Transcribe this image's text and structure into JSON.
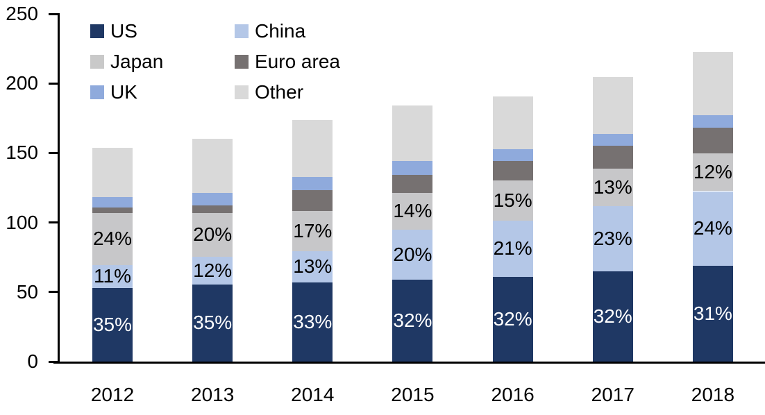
{
  "chart_data": {
    "type": "bar",
    "stacked": true,
    "title": "",
    "categories": [
      "2012",
      "2013",
      "2014",
      "2015",
      "2016",
      "2017",
      "2018"
    ],
    "series": [
      {
        "name": "US",
        "color": "#1F3864",
        "values": [
          53,
          55.5,
          57,
          59,
          61,
          65,
          69
        ],
        "labels": [
          "35%",
          "35%",
          "33%",
          "32%",
          "32%",
          "32%",
          "31%"
        ],
        "label_color": "#FFFFFF"
      },
      {
        "name": "China",
        "color": "#B4C7E7",
        "values": [
          16.5,
          20,
          22.5,
          36,
          40.5,
          47,
          53.5
        ],
        "labels": [
          "11%",
          "12%",
          "13%",
          "20%",
          "21%",
          "23%",
          "24%"
        ],
        "label_color": "#000000"
      },
      {
        "name": "Japan",
        "color": "#C7C7C9",
        "values": [
          37.5,
          31.5,
          29,
          26.5,
          28.5,
          26.5,
          27
        ],
        "labels": [
          "24%",
          "20%",
          "17%",
          "14%",
          "15%",
          "13%",
          "12%"
        ],
        "label_color": "#000000"
      },
      {
        "name": "Euro area",
        "color": "#767171",
        "values": [
          4,
          5.5,
          15,
          12.5,
          14,
          16.5,
          18.5
        ],
        "labels": null,
        "label_color": null
      },
      {
        "name": "UK",
        "color": "#8FAADC",
        "values": [
          7.5,
          9,
          9,
          10,
          8.5,
          8.5,
          9
        ],
        "labels": null,
        "label_color": null
      },
      {
        "name": "Other",
        "color": "#D9D9D9",
        "values": [
          35,
          38.5,
          41,
          40,
          38,
          41,
          45.5
        ],
        "labels": null,
        "label_color": null
      }
    ],
    "totals": [
      153.5,
      160,
      173.5,
      184,
      190.5,
      204.5,
      222.5
    ],
    "y_axis": {
      "min": 0,
      "max": 250,
      "step": 50,
      "ticks": [
        "0",
        "50",
        "100",
        "150",
        "200",
        "250"
      ]
    },
    "x_axis": {
      "label": ""
    },
    "grid": false,
    "legend": {
      "position": "top-left",
      "columns": 2,
      "items": [
        {
          "label": "US",
          "color": "#1F3864"
        },
        {
          "label": "China",
          "color": "#B4C7E7"
        },
        {
          "label": "Japan",
          "color": "#C9C9C9"
        },
        {
          "label": "Euro area",
          "color": "#767171"
        },
        {
          "label": "UK",
          "color": "#8FAADC"
        },
        {
          "label": "Other",
          "color": "#D9D9D9"
        }
      ]
    }
  }
}
